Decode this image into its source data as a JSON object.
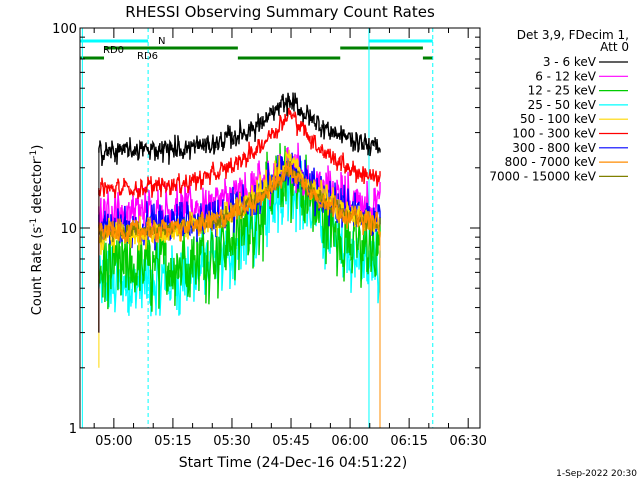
{
  "chart_data": {
    "type": "line",
    "title": "RHESSI Observing Summary Count Rates",
    "xlabel": "Start Time (24-Dec-16 04:51:22)",
    "ylabel_main": "Count Rate (s",
    "ylabel_sup1": "-1",
    "ylabel_mid": " detector",
    "ylabel_sup2": "-1",
    "ylabel_end": ")",
    "yscale": "log",
    "ylim": [
      1,
      100
    ],
    "xlim_min": [
      291.4,
      393
    ],
    "y_ticks": [
      {
        "v": 1,
        "label": "1"
      },
      {
        "v": 10,
        "label": "10"
      },
      {
        "v": 100,
        "label": "100"
      }
    ],
    "x_ticks": [
      {
        "v": 300,
        "label": "05:00"
      },
      {
        "v": 315,
        "label": "05:15"
      },
      {
        "v": 330,
        "label": "05:30"
      },
      {
        "v": 345,
        "label": "05:45"
      },
      {
        "v": 360,
        "label": "06:00"
      },
      {
        "v": 375,
        "label": "06:15"
      },
      {
        "v": 390,
        "label": "06:30"
      }
    ],
    "data_start_min": 296.2,
    "data_end_min": 367.6,
    "peak_min": 344.5,
    "legend_header": [
      "Det 3,9, FDecim 1,",
      "Att 0"
    ],
    "series": [
      {
        "name": "3 - 6 keV",
        "color": "#000000",
        "base": 24,
        "peak": 44,
        "noise": 0.08
      },
      {
        "name": "6 - 12 keV",
        "color": "#ff00ff",
        "base": 12,
        "peak": 22,
        "noise": 0.15
      },
      {
        "name": "12 - 25 keV",
        "color": "#00cc00",
        "base": 6,
        "peak": 19,
        "noise": 0.28
      },
      {
        "name": "25 - 50 keV",
        "color": "#00ffff",
        "base": 5,
        "peak": 18,
        "noise": 0.25
      },
      {
        "name": "50 - 100 keV",
        "color": "#ffd700",
        "base": 9,
        "peak": 22,
        "noise": 0.1
      },
      {
        "name": "100 - 300 keV",
        "color": "#ff0000",
        "base": 15.5,
        "peak": 38,
        "noise": 0.07
      },
      {
        "name": "300 - 800 keV",
        "color": "#0000ff",
        "base": 10,
        "peak": 21,
        "noise": 0.14
      },
      {
        "name": "800 - 7000 keV",
        "color": "#ff8c00",
        "base": 9.5,
        "peak": 20,
        "noise": 0.08
      },
      {
        "name": "7000 - 15000 keV",
        "color": "#808000",
        "base": 9.5,
        "peak": 20,
        "noise": 0.06
      }
    ],
    "vlines": [
      {
        "t": 292.0,
        "style": "solid",
        "color": "#00ffff"
      },
      {
        "t": 308.7,
        "style": "dashed",
        "color": "#00ffff"
      },
      {
        "t": 364.8,
        "style": "solid",
        "color": "#00ffff"
      },
      {
        "t": 381.0,
        "style": "dashed",
        "color": "#00ffff"
      }
    ],
    "bars": [
      {
        "label": "N",
        "color": "#00ffff",
        "level": 1,
        "segments": [
          [
            291.4,
            308.7
          ],
          [
            364.8,
            381.0
          ]
        ]
      },
      {
        "label": "RD0",
        "color": "#008000",
        "level": 2,
        "segments": [
          [
            297.5,
            331.5
          ],
          [
            357.5,
            378.5
          ]
        ]
      },
      {
        "label": "RD6",
        "color": "#008000",
        "level": 3,
        "segments": [
          [
            291.4,
            297.5
          ],
          [
            331.5,
            357.5
          ],
          [
            378.5,
            381.0
          ]
        ]
      }
    ]
  },
  "footer_date": "1-Sep-2022 20:30"
}
